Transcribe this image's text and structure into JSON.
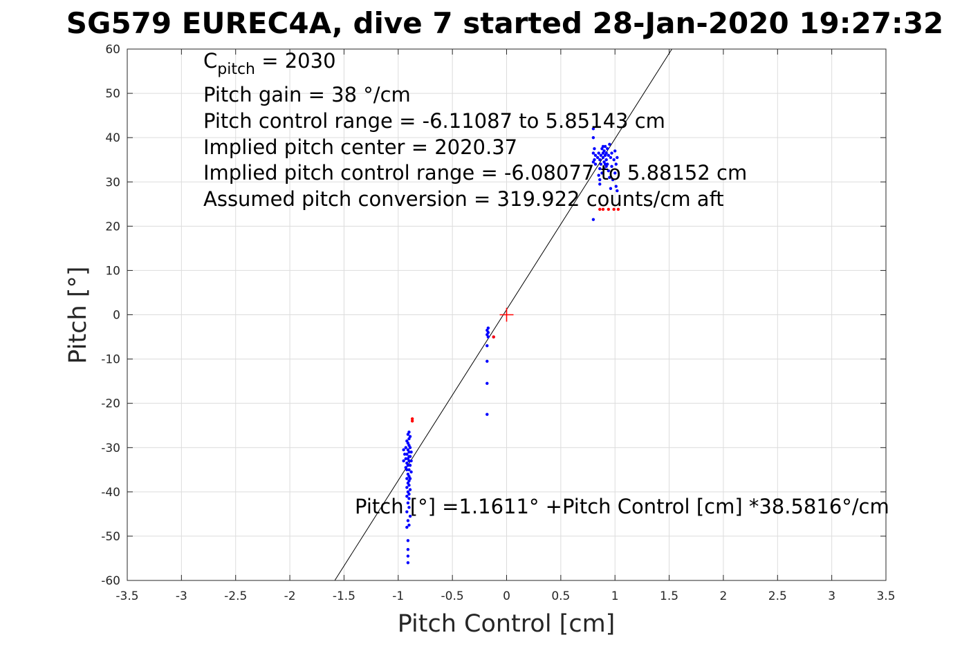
{
  "chart_data": {
    "type": "scatter",
    "title": "SG579 EUREC4A, dive 7 started 28-Jan-2020 19:27:32",
    "xlabel": "Pitch Control [cm]",
    "ylabel": "Pitch [°]",
    "xlim": [
      -3.5,
      3.5
    ],
    "ylim": [
      -60,
      60
    ],
    "xticks": [
      "-3.5",
      "-3",
      "-2.5",
      "-2",
      "-1.5",
      "-1",
      "-0.5",
      "0",
      "0.5",
      "1",
      "1.5",
      "2",
      "2.5",
      "3",
      "3.5"
    ],
    "yticks": [
      "-60",
      "-50",
      "-40",
      "-30",
      "-20",
      "-10",
      "0",
      "10",
      "20",
      "30",
      "40",
      "50",
      "60"
    ],
    "grid": true,
    "annotations": {
      "cpitch_main": "C",
      "cpitch_sub": "pitch",
      "cpitch_value": " = 2030",
      "lines": [
        "Pitch gain = 38 °/cm",
        "Pitch control range = -6.11087 to 5.85143 cm",
        "Implied pitch center = 2020.37",
        "Implied pitch control range = -6.08077 to 5.88152 cm",
        "Assumed pitch conversion = 319.922 counts/cm aft"
      ],
      "fit_equation": "Pitch [°] =1.1611° +Pitch Control [cm] *38.5816°/cm"
    },
    "fit_line": {
      "intercept": 1.1611,
      "slope": 38.5816,
      "color": "#000000"
    },
    "center_marker": {
      "x": 0,
      "y": 0,
      "color": "#ff0000"
    },
    "series": [
      {
        "color": "#0000ff",
        "points": [
          [
            -0.9,
            -26.5
          ],
          [
            -0.91,
            -27.0
          ],
          [
            -0.89,
            -27.5
          ],
          [
            -0.9,
            -28.0
          ],
          [
            -0.92,
            -28.5
          ],
          [
            -0.91,
            -29.0
          ],
          [
            -0.9,
            -29.5
          ],
          [
            -0.89,
            -30.0
          ],
          [
            -0.93,
            -30.0
          ],
          [
            -0.95,
            -30.5
          ],
          [
            -0.91,
            -30.5
          ],
          [
            -0.9,
            -31.0
          ],
          [
            -0.88,
            -31.0
          ],
          [
            -0.92,
            -31.5
          ],
          [
            -0.94,
            -31.5
          ],
          [
            -0.9,
            -32.0
          ],
          [
            -0.89,
            -32.0
          ],
          [
            -0.91,
            -32.5
          ],
          [
            -0.93,
            -32.5
          ],
          [
            -0.95,
            -33.0
          ],
          [
            -0.9,
            -33.0
          ],
          [
            -0.88,
            -33.0
          ],
          [
            -0.92,
            -33.5
          ],
          [
            -0.91,
            -34.0
          ],
          [
            -0.89,
            -34.0
          ],
          [
            -0.93,
            -34.5
          ],
          [
            -0.9,
            -35.0
          ],
          [
            -0.92,
            -35.0
          ],
          [
            -0.88,
            -35.5
          ],
          [
            -0.91,
            -36.0
          ],
          [
            -0.9,
            -36.5
          ],
          [
            -0.89,
            -37.0
          ],
          [
            -0.92,
            -37.0
          ],
          [
            -0.9,
            -37.5
          ],
          [
            -0.91,
            -38.0
          ],
          [
            -0.9,
            -38.5
          ],
          [
            -0.92,
            -39.0
          ],
          [
            -0.89,
            -39.5
          ],
          [
            -0.91,
            -40.0
          ],
          [
            -0.9,
            -40.5
          ],
          [
            -0.92,
            -41.0
          ],
          [
            -0.9,
            -41.5
          ],
          [
            -0.91,
            -42.5
          ],
          [
            -0.9,
            -43.5
          ],
          [
            -0.92,
            -44.5
          ],
          [
            -0.89,
            -45.5
          ],
          [
            -0.91,
            -46.5
          ],
          [
            -0.9,
            -47.5
          ],
          [
            -0.92,
            -48.0
          ],
          [
            -0.91,
            -51.0
          ],
          [
            -0.91,
            -53.0
          ],
          [
            -0.91,
            -54.5
          ],
          [
            -0.91,
            -56.0
          ],
          [
            -0.17,
            -3.0
          ],
          [
            -0.18,
            -3.5
          ],
          [
            -0.17,
            -4.0
          ],
          [
            -0.18,
            -4.5
          ],
          [
            -0.17,
            -5.0
          ],
          [
            -0.18,
            -7.0
          ],
          [
            -0.18,
            -10.5
          ],
          [
            -0.18,
            -15.5
          ],
          [
            -0.18,
            -22.5
          ],
          [
            -0.12,
            -5.0
          ],
          [
            0.8,
            42.0
          ],
          [
            0.8,
            40.0
          ],
          [
            0.81,
            37.5
          ],
          [
            0.8,
            36.5
          ],
          [
            0.82,
            36.0
          ],
          [
            0.81,
            35.0
          ],
          [
            0.8,
            34.5
          ],
          [
            0.82,
            34.0
          ],
          [
            0.84,
            35.5
          ],
          [
            0.85,
            36.5
          ],
          [
            0.86,
            35.0
          ],
          [
            0.87,
            34.0
          ],
          [
            0.86,
            33.0
          ],
          [
            0.85,
            31.5
          ],
          [
            0.86,
            30.5
          ],
          [
            0.86,
            29.5
          ],
          [
            0.88,
            37.5
          ],
          [
            0.89,
            36.5
          ],
          [
            0.89,
            35.5
          ],
          [
            0.9,
            34.5
          ],
          [
            0.9,
            37.0
          ],
          [
            0.91,
            38.0
          ],
          [
            0.91,
            36.0
          ],
          [
            0.92,
            35.0
          ],
          [
            0.92,
            33.5
          ],
          [
            0.93,
            37.5
          ],
          [
            0.93,
            34.0
          ],
          [
            0.94,
            32.5
          ],
          [
            0.94,
            36.0
          ],
          [
            0.95,
            38.5
          ],
          [
            0.95,
            31.0
          ],
          [
            0.96,
            35.5
          ],
          [
            0.96,
            28.5
          ],
          [
            0.97,
            36.5
          ],
          [
            0.97,
            33.5
          ],
          [
            0.98,
            30.5
          ],
          [
            0.99,
            35.0
          ],
          [
            1.0,
            37.0
          ],
          [
            1.0,
            32.0
          ],
          [
            1.01,
            34.0
          ],
          [
            1.01,
            29.0
          ],
          [
            1.02,
            35.5
          ],
          [
            1.02,
            28.0
          ],
          [
            0.8,
            21.5
          ],
          [
            0.88,
            32.0
          ],
          [
            0.9,
            33.0
          ],
          [
            0.92,
            36.5
          ],
          [
            0.87,
            36.0
          ],
          [
            0.89,
            38.0
          ],
          [
            0.91,
            34.0
          ]
        ]
      },
      {
        "color": "#ff0000",
        "points": [
          [
            -0.87,
            -23.5
          ],
          [
            -0.87,
            -24.0
          ],
          [
            -0.12,
            -5.0
          ],
          [
            0.86,
            23.8
          ],
          [
            0.89,
            23.8
          ],
          [
            0.94,
            23.8
          ],
          [
            0.99,
            23.8
          ],
          [
            1.03,
            23.8
          ]
        ]
      }
    ]
  }
}
